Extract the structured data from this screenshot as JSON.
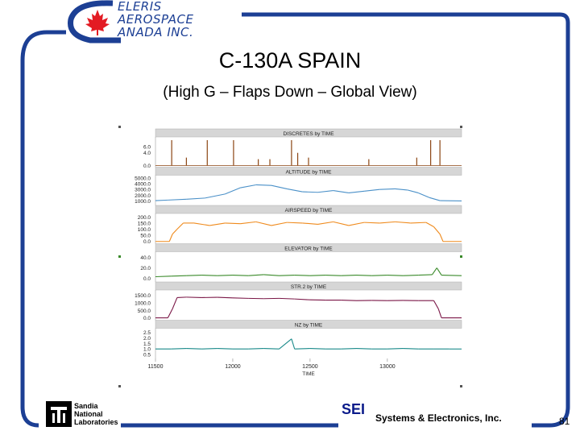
{
  "logo": {
    "line1": "ELERIS",
    "line2": "AEROSPACE",
    "line3": "ANADA  INC."
  },
  "slide": {
    "title": "C-130A SPAIN",
    "subtitle": "(High G – Flaps Down – Global View)",
    "page_number": "81"
  },
  "footer": {
    "sandia_lines": [
      "Sandia",
      "National",
      "Laboratories"
    ],
    "sei": "SEI",
    "company": "Systems & Electronics, Inc."
  },
  "colors": {
    "frame": "#1c3f94",
    "maple_leaf": "#e31b23",
    "panel_header": "#d6d6d6",
    "discretes": "#8b4513",
    "altitude": "#4a90c8",
    "airspeed": "#ef8a1c",
    "elevator": "#3a8a2a",
    "str2": "#7a1646",
    "nz": "#1a8a8a"
  },
  "chart_data": {
    "type": "line",
    "x_label": "TIME",
    "x_ticks": [
      "11500",
      "12000",
      "12500",
      "13000"
    ],
    "xlim": [
      11500,
      13480
    ],
    "panels": [
      {
        "name": "DISCRETES by TIME",
        "y_ticks": [
          "6.0",
          "4.0",
          "0.0"
        ],
        "ylim": [
          0,
          8.5
        ],
        "color_key": "discretes",
        "spikes": [
          {
            "x": 11605,
            "y": 8.0
          },
          {
            "x": 11700,
            "y": 2.5
          },
          {
            "x": 11835,
            "y": 8.0
          },
          {
            "x": 12005,
            "y": 8.0
          },
          {
            "x": 12165,
            "y": 2.0
          },
          {
            "x": 12240,
            "y": 2.0
          },
          {
            "x": 12380,
            "y": 8.0
          },
          {
            "x": 12420,
            "y": 4.0
          },
          {
            "x": 12490,
            "y": 2.5
          },
          {
            "x": 12880,
            "y": 2.0
          },
          {
            "x": 13190,
            "y": 2.5
          },
          {
            "x": 13280,
            "y": 8.0
          },
          {
            "x": 13340,
            "y": 8.0
          }
        ]
      },
      {
        "name": "ALTITUDE by TIME",
        "y_ticks": [
          "5000.0",
          "4000.0",
          "3000.0",
          "2000.0",
          "1000.0"
        ],
        "ylim": [
          500,
          5200
        ],
        "color_key": "altitude",
        "points": [
          [
            11500,
            1050
          ],
          [
            11580,
            1150
          ],
          [
            11700,
            1300
          ],
          [
            11820,
            1500
          ],
          [
            11950,
            2200
          ],
          [
            12050,
            3300
          ],
          [
            12150,
            3800
          ],
          [
            12250,
            3700
          ],
          [
            12350,
            3100
          ],
          [
            12450,
            2600
          ],
          [
            12550,
            2500
          ],
          [
            12650,
            2800
          ],
          [
            12750,
            2400
          ],
          [
            12850,
            2700
          ],
          [
            12950,
            3000
          ],
          [
            13050,
            3100
          ],
          [
            13130,
            2900
          ],
          [
            13200,
            2400
          ],
          [
            13270,
            1600
          ],
          [
            13340,
            1050
          ],
          [
            13480,
            1000
          ]
        ]
      },
      {
        "name": "AIRSPEED by TIME",
        "y_ticks": [
          "200.0",
          "150.0",
          "100.0",
          "50.0",
          "0.0"
        ],
        "ylim": [
          -5,
          215
        ],
        "color_key": "airspeed",
        "points": [
          [
            11500,
            0
          ],
          [
            11590,
            0
          ],
          [
            11610,
            60
          ],
          [
            11640,
            100
          ],
          [
            11680,
            150
          ],
          [
            11750,
            150
          ],
          [
            11850,
            130
          ],
          [
            11950,
            150
          ],
          [
            12050,
            145
          ],
          [
            12150,
            160
          ],
          [
            12250,
            130
          ],
          [
            12350,
            155
          ],
          [
            12450,
            150
          ],
          [
            12550,
            140
          ],
          [
            12650,
            160
          ],
          [
            12750,
            130
          ],
          [
            12850,
            155
          ],
          [
            12950,
            150
          ],
          [
            13050,
            160
          ],
          [
            13150,
            150
          ],
          [
            13250,
            155
          ],
          [
            13300,
            120
          ],
          [
            13340,
            60
          ],
          [
            13360,
            0
          ],
          [
            13480,
            0
          ]
        ]
      },
      {
        "name": "ELEVATOR by TIME",
        "y_ticks": [
          "40.0",
          "20.0",
          "0.0"
        ],
        "ylim": [
          -4,
          48
        ],
        "color_key": "elevator",
        "points": [
          [
            11500,
            3
          ],
          [
            11600,
            4
          ],
          [
            11700,
            5
          ],
          [
            11800,
            6
          ],
          [
            11900,
            5
          ],
          [
            12000,
            6
          ],
          [
            12100,
            5
          ],
          [
            12200,
            7
          ],
          [
            12300,
            5
          ],
          [
            12400,
            6
          ],
          [
            12500,
            5
          ],
          [
            12600,
            6
          ],
          [
            12700,
            5
          ],
          [
            12800,
            6
          ],
          [
            12900,
            5
          ],
          [
            13000,
            6
          ],
          [
            13100,
            5
          ],
          [
            13200,
            6
          ],
          [
            13290,
            7
          ],
          [
            13320,
            20
          ],
          [
            13350,
            6
          ],
          [
            13480,
            5
          ]
        ]
      },
      {
        "name": "STR.2 by TIME",
        "y_ticks": [
          "1500.0",
          "1000.0",
          "500.0",
          "0.0"
        ],
        "ylim": [
          -50,
          1750
        ],
        "color_key": "str2",
        "points": [
          [
            11500,
            0
          ],
          [
            11580,
            0
          ],
          [
            11610,
            600
          ],
          [
            11640,
            1350
          ],
          [
            11700,
            1380
          ],
          [
            11800,
            1350
          ],
          [
            11900,
            1370
          ],
          [
            12000,
            1330
          ],
          [
            12100,
            1300
          ],
          [
            12200,
            1280
          ],
          [
            12300,
            1300
          ],
          [
            12400,
            1260
          ],
          [
            12500,
            1200
          ],
          [
            12600,
            1180
          ],
          [
            12700,
            1180
          ],
          [
            12800,
            1150
          ],
          [
            12900,
            1160
          ],
          [
            13000,
            1150
          ],
          [
            13100,
            1160
          ],
          [
            13200,
            1150
          ],
          [
            13300,
            1150
          ],
          [
            13330,
            600
          ],
          [
            13350,
            0
          ],
          [
            13480,
            0
          ]
        ]
      },
      {
        "name": "NZ by TIME",
        "y_ticks": [
          "2.5",
          "2.0",
          "1.5",
          "1.0",
          "0.5"
        ],
        "ylim": [
          0.3,
          2.7
        ],
        "color_key": "nz",
        "points": [
          [
            11500,
            1.0
          ],
          [
            11600,
            1.0
          ],
          [
            11700,
            1.05
          ],
          [
            11800,
            1.0
          ],
          [
            11900,
            1.05
          ],
          [
            12000,
            1.0
          ],
          [
            12100,
            1.0
          ],
          [
            12200,
            1.05
          ],
          [
            12300,
            1.0
          ],
          [
            12380,
            1.9
          ],
          [
            12400,
            1.0
          ],
          [
            12500,
            1.05
          ],
          [
            12600,
            1.0
          ],
          [
            12700,
            1.0
          ],
          [
            12800,
            1.05
          ],
          [
            12900,
            1.0
          ],
          [
            13000,
            1.0
          ],
          [
            13100,
            1.05
          ],
          [
            13200,
            1.0
          ],
          [
            13300,
            1.0
          ],
          [
            13400,
            1.0
          ],
          [
            13480,
            1.0
          ]
        ]
      }
    ]
  }
}
